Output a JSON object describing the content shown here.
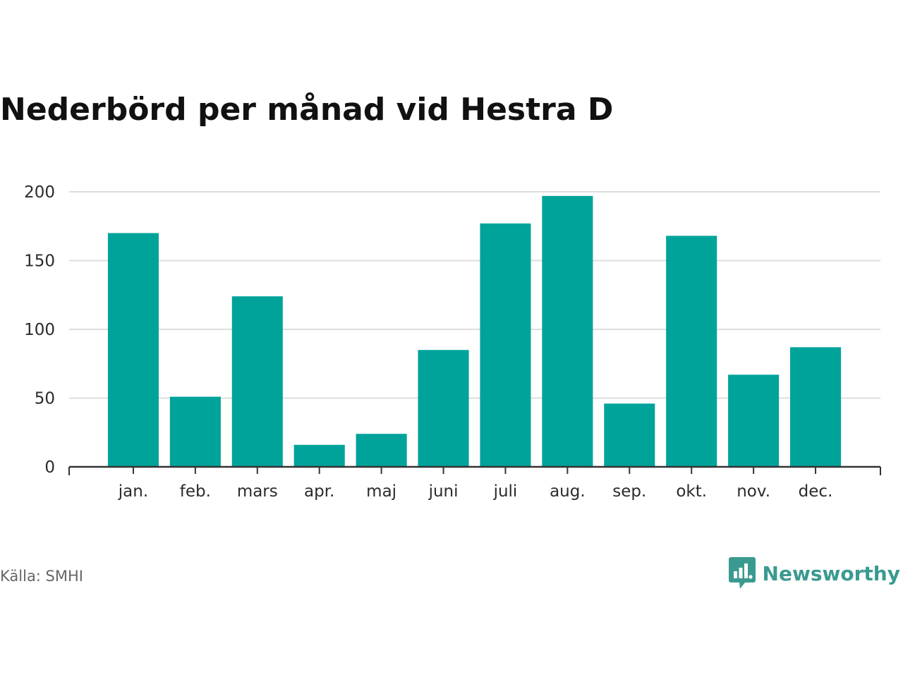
{
  "title": "Nederbörd per månad vid Hestra D",
  "source": "Källa: SMHI",
  "brand": {
    "name": "Newsworthy",
    "icon": "bar-chart-speech-bubble-icon",
    "color": "#3a9a90"
  },
  "colors": {
    "bar": "#00a39a",
    "grid": "#dddddd",
    "axis": "#333333"
  },
  "chart_data": {
    "type": "bar",
    "title": "Nederbörd per månad vid Hestra D",
    "xlabel": "",
    "ylabel": "",
    "categories": [
      "jan.",
      "feb.",
      "mars",
      "apr.",
      "maj",
      "juni",
      "juli",
      "aug.",
      "sep.",
      "okt.",
      "nov.",
      "dec."
    ],
    "values": [
      170,
      51,
      124,
      16,
      24,
      85,
      177,
      197,
      46,
      168,
      67,
      87
    ],
    "ylim": [
      0,
      200
    ],
    "yticks": [
      0,
      50,
      100,
      150,
      200
    ],
    "grid": true,
    "legend": "none"
  }
}
